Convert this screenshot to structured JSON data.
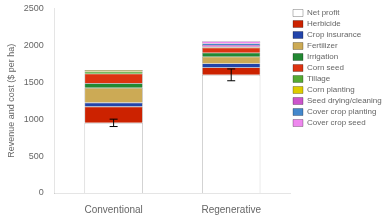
{
  "chart_data": {
    "type": "bar",
    "stacked": true,
    "categories": [
      "Conventional",
      "Regenerative"
    ],
    "series": [
      {
        "name": "Net profit",
        "color": "#ffffff",
        "values": [
          950,
          1600
        ],
        "errors": [
          50,
          80
        ]
      },
      {
        "name": "Herbicide",
        "color": "#cc2200",
        "values": [
          220,
          100
        ]
      },
      {
        "name": "Crop insurance",
        "color": "#2244aa",
        "values": [
          55,
          55
        ]
      },
      {
        "name": "Fertilizer",
        "color": "#ccaa55",
        "values": [
          200,
          90
        ]
      },
      {
        "name": "Irrigation",
        "color": "#228833",
        "values": [
          60,
          55
        ]
      },
      {
        "name": "Corn seed",
        "color": "#dd3311",
        "values": [
          130,
          70
        ]
      },
      {
        "name": "Tillage",
        "color": "#55aa33",
        "values": [
          30,
          0
        ]
      },
      {
        "name": "Corn planting",
        "color": "#ddcc00",
        "values": [
          20,
          10
        ]
      },
      {
        "name": "Seed drying/cleaning",
        "color": "#cc55cc",
        "values": [
          0,
          25
        ]
      },
      {
        "name": "Cover crop planting",
        "color": "#4488cc",
        "values": [
          0,
          20
        ]
      },
      {
        "name": "Cover crop seed",
        "color": "#ee88ee",
        "values": [
          0,
          30
        ]
      }
    ],
    "ylabel": "Revenue and cost ($ per ha)",
    "ylim": [
      0,
      2500
    ],
    "yticks": [
      0,
      500,
      1000,
      1500,
      2000,
      2500
    ],
    "grid": false,
    "legend": "right"
  }
}
